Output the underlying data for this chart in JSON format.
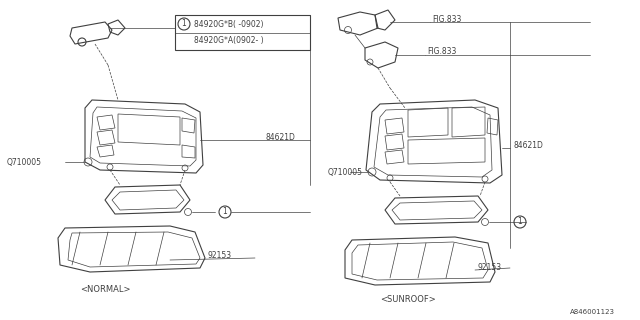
{
  "bg_color": "#ffffff",
  "line_color": "#404040",
  "text_color": "#404040",
  "fig_width": 6.4,
  "fig_height": 3.2,
  "dpi": 100,
  "labels": {
    "part_box_line1": "84920G*B( -0902)",
    "part_box_line2": "84920G*A(0902- )",
    "left_label1": "Q710005",
    "left_label2": "84621D",
    "left_label3": "92153",
    "left_caption": "<NORMAL>",
    "right_fig1": "FIG.833",
    "right_fig2": "FIG.833",
    "right_label1": "Q710005",
    "right_label2": "84621D",
    "right_label3": "92153",
    "right_caption": "<SUNROOF>",
    "bottom_right": "A846001123",
    "circle1": "1"
  }
}
